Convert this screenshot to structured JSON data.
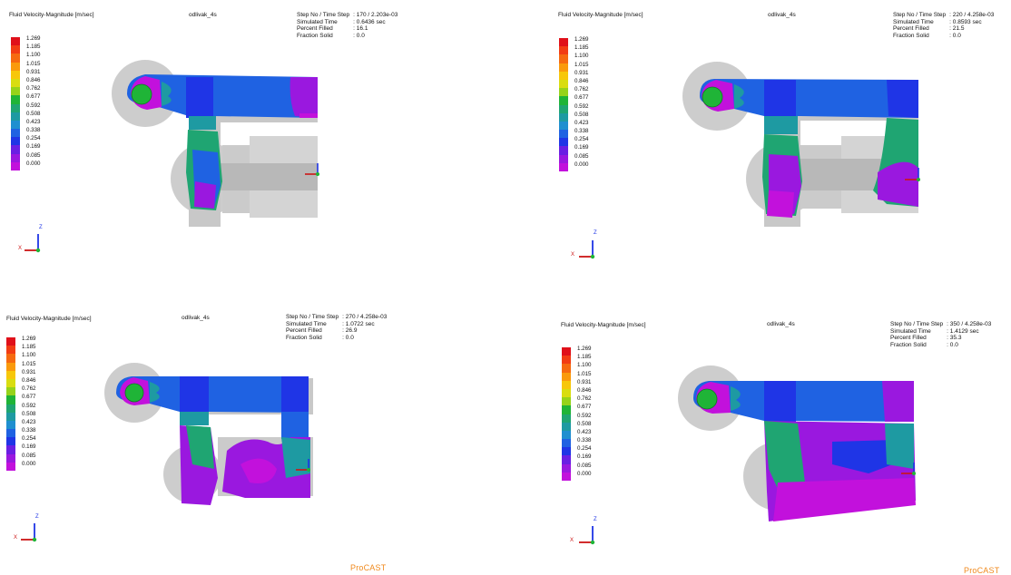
{
  "colors": {
    "scale": [
      "#e0101a",
      "#f23c14",
      "#f66a10",
      "#fa9a0c",
      "#f7c70a",
      "#d9dd10",
      "#96d31a",
      "#1fb437",
      "#1fa572",
      "#1e9aa2",
      "#1f8fd0",
      "#1f62e2",
      "#1f35e6",
      "#6a1fe3",
      "#9a18df",
      "#c211dc"
    ],
    "brand": "#f08a1e"
  },
  "legend": {
    "title": "Fluid Velocity-Magnitude [m/sec]",
    "ticks": [
      "1.269",
      "1.185",
      "1.100",
      "1.015",
      "0.931",
      "0.846",
      "0.762",
      "0.677",
      "0.592",
      "0.508",
      "0.423",
      "0.338",
      "0.254",
      "0.169",
      "0.085",
      "0.000"
    ]
  },
  "project_name": "odlivak_4s",
  "info_labels": {
    "step": "Step No / Time Step",
    "time": "Simulated Time",
    "filled": "Percent Filled",
    "solid": "Fraction Solid"
  },
  "axes": {
    "x": "X",
    "z": "Z"
  },
  "panels": [
    {
      "step": ": 170 / 2.203e-03",
      "time": ": 0.6436 sec",
      "filled": ": 16.1",
      "solid": ": 0.0",
      "fill_fraction": 0.161
    },
    {
      "step": ": 220 / 4.258e-03",
      "time": ": 0.8593 sec",
      "filled": ": 21.5",
      "solid": ": 0.0",
      "fill_fraction": 0.215
    },
    {
      "step": ": 270 / 4.258e-03",
      "time": ": 1.0722 sec",
      "filled": ": 26.9",
      "solid": ": 0.0",
      "fill_fraction": 0.269
    },
    {
      "step": ": 350 / 4.258e-03",
      "time": ": 1.4129 sec",
      "filled": ": 35.3",
      "solid": ": 0.0",
      "fill_fraction": 0.353
    }
  ],
  "brand": "ProCAST"
}
